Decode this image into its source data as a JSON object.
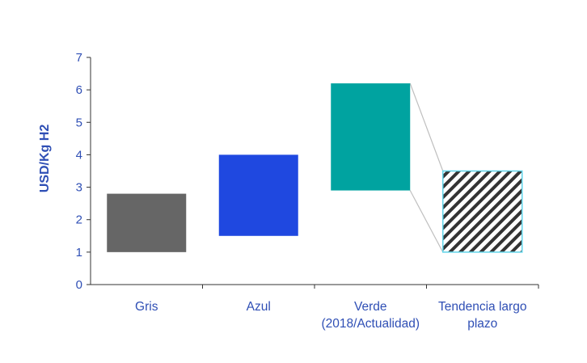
{
  "chart_data": {
    "type": "bar",
    "subtype": "floating-range",
    "title": "",
    "xlabel": "",
    "ylabel": "USD/Kg H2",
    "ylim": [
      0,
      7
    ],
    "yticks": [
      "0",
      "1",
      "2",
      "3",
      "4",
      "5",
      "6",
      "7"
    ],
    "grid": false,
    "categories": [
      {
        "lines": [
          "Gris"
        ],
        "low": 1.0,
        "high": 2.8,
        "color": "#666666",
        "pattern": "solid"
      },
      {
        "lines": [
          "Azul"
        ],
        "low": 1.5,
        "high": 4.0,
        "color": "#1F48E0",
        "pattern": "solid"
      },
      {
        "lines": [
          "Verde",
          "(2018/Actualidad)"
        ],
        "low": 2.9,
        "high": 6.2,
        "color": "#00A3A0",
        "pattern": "solid"
      },
      {
        "lines": [
          "Tendencia largo",
          "plazo"
        ],
        "low": 1.0,
        "high": 3.5,
        "color": "#333333",
        "border": "#5FD3E8",
        "pattern": "diagonal-hatch"
      }
    ],
    "connector": {
      "from": 2,
      "to": 3,
      "color": "#BFBFBF"
    },
    "axis_color": "#2F4FB5"
  }
}
